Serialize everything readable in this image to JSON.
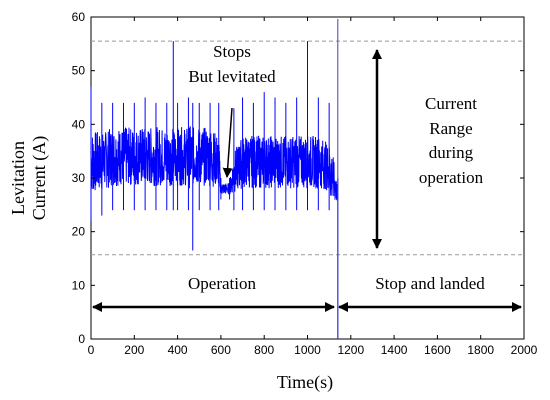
{
  "chart_data": {
    "type": "line",
    "xlabel": "Time(s)",
    "ylabel_lines": [
      "Levitation",
      "Current (A)"
    ],
    "xlim": [
      0,
      2000
    ],
    "ylim": [
      0,
      60
    ],
    "xticks": [
      0,
      200,
      400,
      600,
      800,
      1000,
      1200,
      1400,
      1600,
      1800,
      2000
    ],
    "yticks": [
      0,
      10,
      20,
      30,
      40,
      50,
      60
    ],
    "grid": false,
    "series": [
      {
        "color": "#0000ff",
        "x": [
          0,
          50,
          100,
          150,
          200,
          250,
          300,
          350,
          380,
          400,
          450,
          470,
          500,
          550,
          590,
          600,
          640,
          660,
          700,
          750,
          800,
          850,
          900,
          950,
          1000,
          1050,
          1100,
          1140
        ],
        "y_center": [
          33,
          33,
          34,
          34,
          34,
          34,
          34,
          34,
          34,
          34,
          34,
          34,
          34,
          34,
          33,
          28,
          28,
          31,
          33,
          33,
          33,
          33,
          33,
          33,
          33,
          33,
          32,
          27
        ],
        "y_min": [
          22,
          23,
          24,
          24,
          24,
          24,
          24,
          24,
          24,
          24,
          24,
          16.5,
          24,
          24,
          24,
          26,
          26,
          24,
          24,
          24,
          24,
          24,
          24,
          24,
          24,
          24,
          24,
          0
        ],
        "y_max": [
          47,
          44,
          44,
          44,
          44,
          45,
          44,
          44,
          55.5,
          44,
          45,
          44,
          44,
          44,
          44,
          30,
          30,
          43,
          45,
          44,
          46,
          45,
          44,
          45,
          55.5,
          45,
          44,
          30
        ]
      }
    ],
    "reference_lines": [
      {
        "y": 55.5,
        "style": "dashed",
        "color": "#999999"
      },
      {
        "y": 15.7,
        "style": "dashed",
        "color": "#999999"
      }
    ],
    "vertical_lines": [
      {
        "x": 1140,
        "color": "#4444aa"
      }
    ],
    "annotations": {
      "stops_lines": [
        "Stops",
        "But levitated"
      ],
      "current_range_lines": [
        "Current",
        "Range",
        "during",
        "operation"
      ],
      "operation": "Operation",
      "stop_landed": "Stop and landed"
    }
  }
}
